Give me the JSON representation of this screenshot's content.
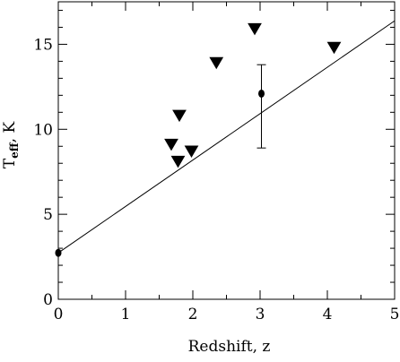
{
  "chart_data": {
    "type": "scatter",
    "title": "",
    "xlabel": "Redshift, z",
    "ylabel": {
      "main": "T",
      "sub": "eff",
      "rest": ", K"
    },
    "xlim": [
      0,
      5
    ],
    "ylim": [
      0,
      17.5
    ],
    "x_ticks": [
      0,
      1,
      2,
      3,
      4,
      5
    ],
    "y_ticks": [
      0,
      5,
      10,
      15
    ],
    "x_minor_step": 0.5,
    "y_minor_step": 1,
    "grid": false,
    "series": [
      {
        "marker": "triangle-down",
        "points": [
          {
            "x": 1.68,
            "y": 9.1
          },
          {
            "x": 1.78,
            "y": 8.1
          },
          {
            "x": 1.8,
            "y": 10.8
          },
          {
            "x": 1.98,
            "y": 8.7
          },
          {
            "x": 2.35,
            "y": 13.9
          },
          {
            "x": 2.92,
            "y": 15.9
          },
          {
            "x": 4.1,
            "y": 14.8
          }
        ]
      },
      {
        "marker": "circle",
        "points": [
          {
            "x": 0.0,
            "y": 2.73
          },
          {
            "x": 3.02,
            "y": 12.1,
            "y_err_low": 8.9,
            "y_err_high": 13.8
          }
        ]
      }
    ],
    "lines": [
      {
        "x": [
          0,
          5
        ],
        "y": [
          2.73,
          16.38
        ]
      }
    ]
  }
}
